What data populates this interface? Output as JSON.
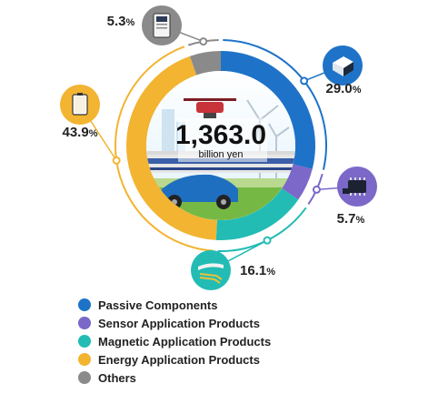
{
  "chart_data": {
    "type": "pie",
    "center_value": "1,363.0",
    "center_unit": "billion yen",
    "categories": [
      "Passive Components",
      "Sensor Application Products",
      "Magnetic Application Products",
      "Energy Application Products",
      "Others"
    ],
    "values": [
      29.0,
      5.7,
      16.1,
      43.9,
      5.3
    ],
    "value_labels": [
      "29.0",
      "5.7",
      "16.1",
      "43.9",
      "5.3"
    ],
    "unit": "%",
    "colors": [
      "#1E73C8",
      "#7B68C8",
      "#22BCB5",
      "#F2B431",
      "#8A8A8A"
    ],
    "icons": [
      "chip-component-icon",
      "sensor-chip-icon",
      "magnetic-head-icon",
      "battery-icon",
      "storage-device-icon"
    ],
    "legend_position": "bottom-left"
  }
}
